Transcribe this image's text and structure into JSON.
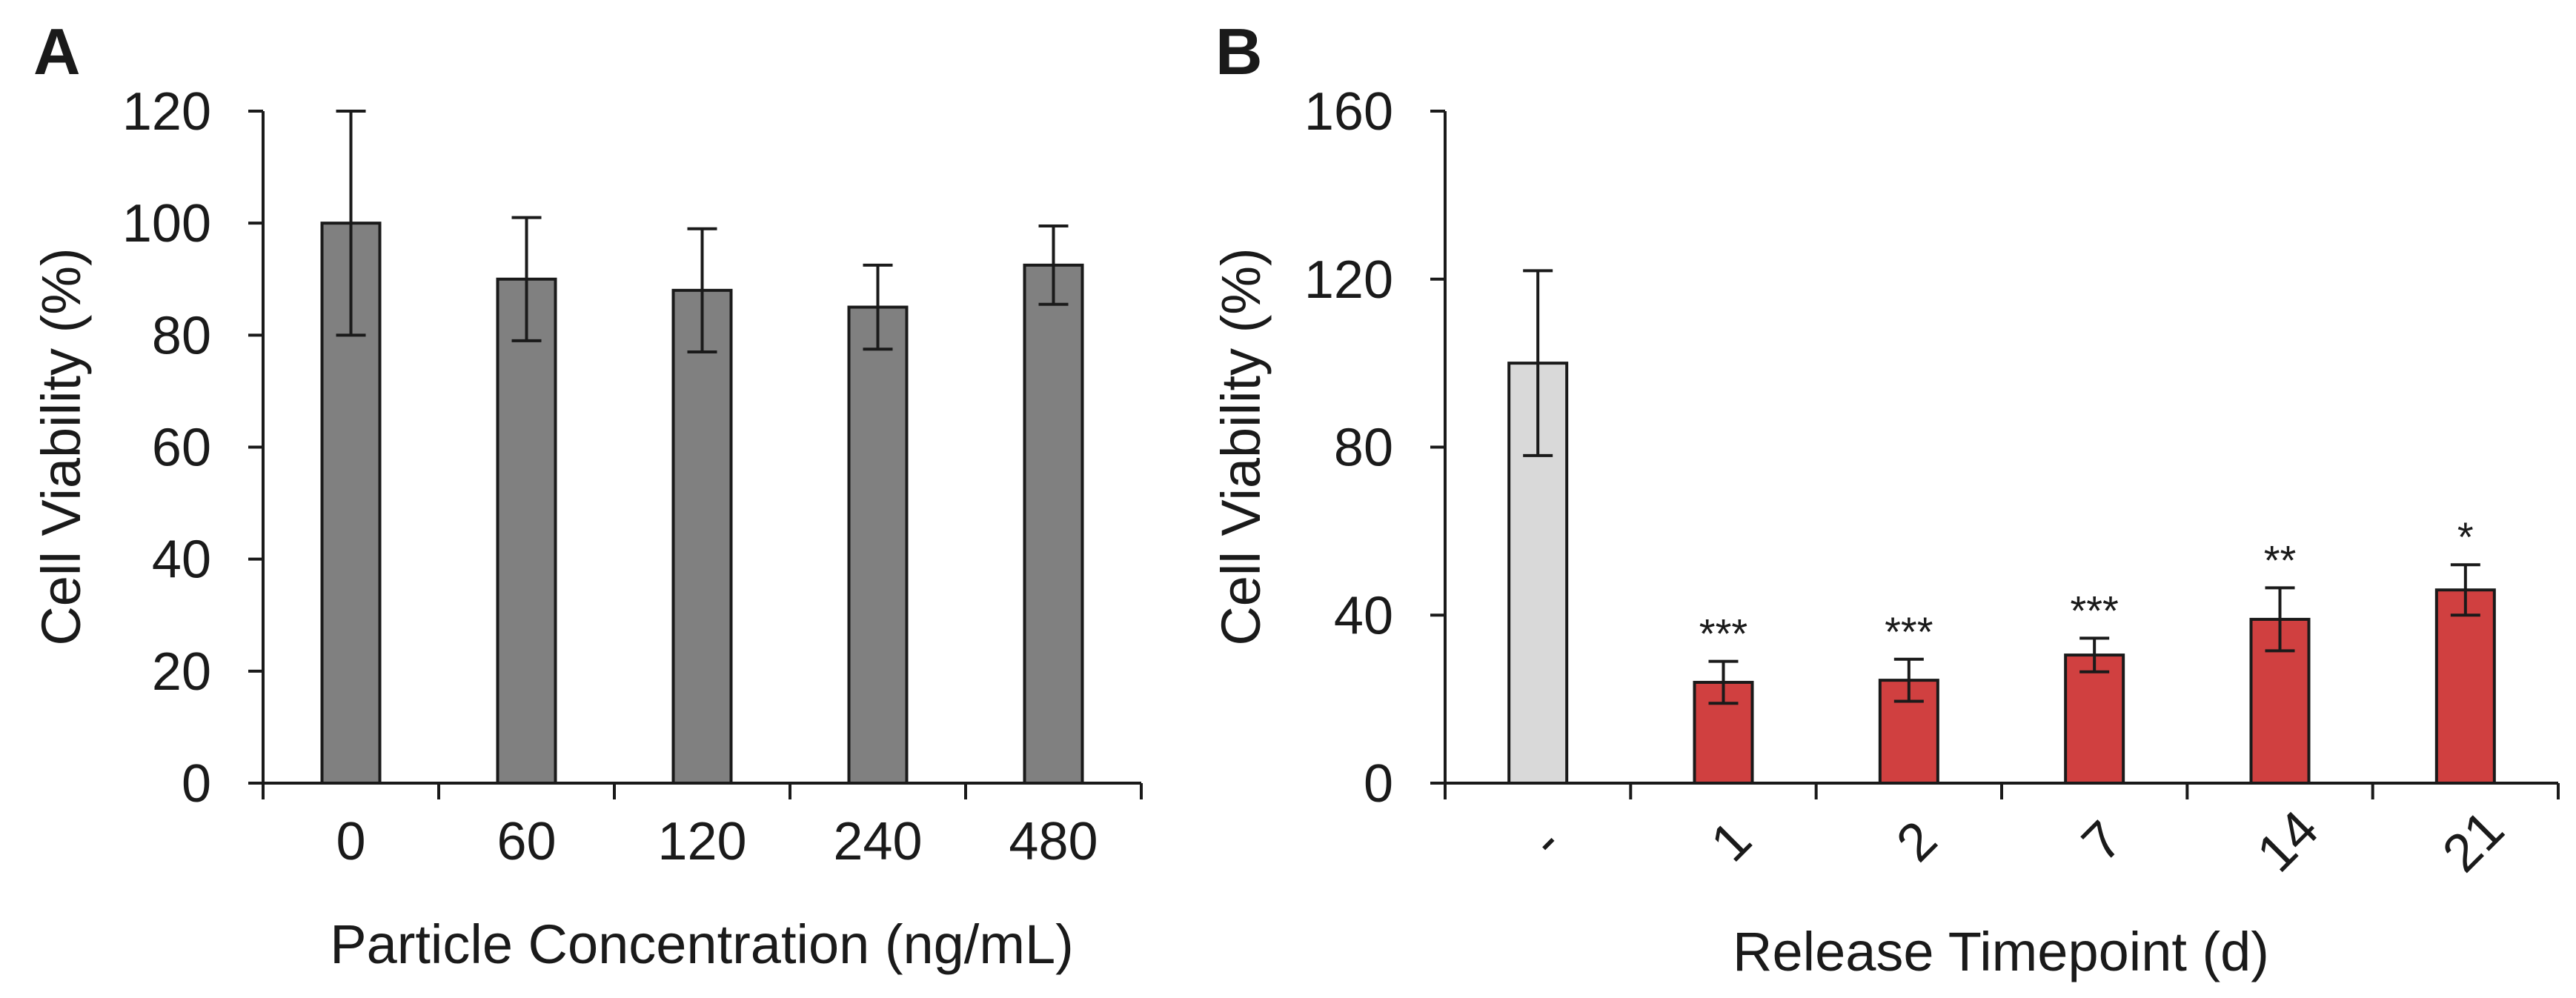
{
  "chart_data": [
    {
      "panel": "A",
      "type": "bar",
      "categories": [
        "0",
        "60",
        "120",
        "240",
        "480"
      ],
      "values": [
        100,
        90,
        88,
        85,
        92.5
      ],
      "errors": [
        20,
        11,
        11,
        7.5,
        7
      ],
      "ylim": [
        0,
        120
      ],
      "yticks": [
        "0",
        "20",
        "40",
        "60",
        "80",
        "100",
        "120"
      ],
      "xlabel": "Particle Concentration (ng/mL)",
      "ylabel": "Cell Viability (%)",
      "bar_colors": [
        "#808080",
        "#808080",
        "#808080",
        "#808080",
        "#808080"
      ],
      "significance": [
        "",
        "",
        "",
        "",
        ""
      ],
      "x_tick_rotation": 0
    },
    {
      "panel": "B",
      "type": "bar",
      "categories": [
        "-",
        "1",
        "2",
        "7",
        "14",
        "21"
      ],
      "values": [
        100,
        24,
        24.5,
        30.5,
        39,
        46
      ],
      "errors": [
        22,
        5,
        5,
        4,
        7.5,
        6
      ],
      "ylim": [
        0,
        160
      ],
      "yticks": [
        "0",
        "40",
        "80",
        "120",
        "160"
      ],
      "xlabel": "Release Timepoint (d)",
      "ylabel": "Cell Viability (%)",
      "bar_colors": [
        "#d9d9d9",
        "#d04040",
        "#d04040",
        "#d04040",
        "#d04040",
        "#d04040"
      ],
      "significance": [
        "",
        "***",
        "***",
        "***",
        "**",
        "*"
      ],
      "x_tick_rotation": -45
    }
  ]
}
